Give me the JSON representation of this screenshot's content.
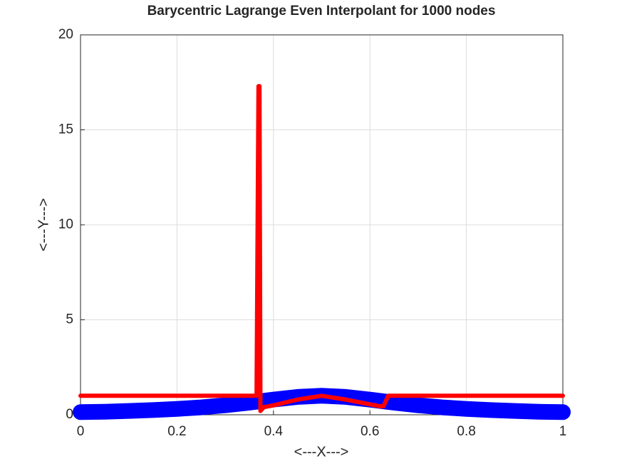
{
  "chart_data": {
    "type": "line",
    "title": "Barycentric Lagrange Even Interpolant for 1000 nodes",
    "xlabel": "<---X--->",
    "ylabel": "<---Y--->",
    "xlim": [
      0,
      1
    ],
    "ylim": [
      0,
      20
    ],
    "xticks": [
      0,
      0.2,
      0.4,
      0.6,
      0.8,
      1
    ],
    "yticks": [
      0,
      5,
      10,
      15,
      20
    ],
    "grid": true,
    "series": [
      {
        "color": "#0000ff",
        "width": 22,
        "x": [
          0,
          0.05,
          0.1,
          0.15,
          0.2,
          0.25,
          0.3,
          0.35,
          0.4,
          0.45,
          0.5,
          0.55,
          0.6,
          0.65,
          0.7,
          0.75,
          0.8,
          0.85,
          0.9,
          0.95,
          1
        ],
        "values": [
          0.14,
          0.16,
          0.2,
          0.25,
          0.31,
          0.39,
          0.5,
          0.64,
          0.8,
          0.94,
          1,
          0.94,
          0.8,
          0.64,
          0.5,
          0.39,
          0.31,
          0.25,
          0.2,
          0.16,
          0.14
        ]
      },
      {
        "color": "#ff0000",
        "width": 6,
        "x": [
          0,
          0.365,
          0.369,
          0.371,
          0.373,
          0.38,
          0.4,
          0.45,
          0.5,
          0.55,
          0.6,
          0.62,
          0.628,
          0.638,
          1
        ],
        "values": [
          1,
          1,
          17.3,
          17.3,
          0.2,
          0.4,
          0.5,
          0.8,
          1,
          0.8,
          0.55,
          0.45,
          0.45,
          1,
          1
        ]
      }
    ]
  }
}
